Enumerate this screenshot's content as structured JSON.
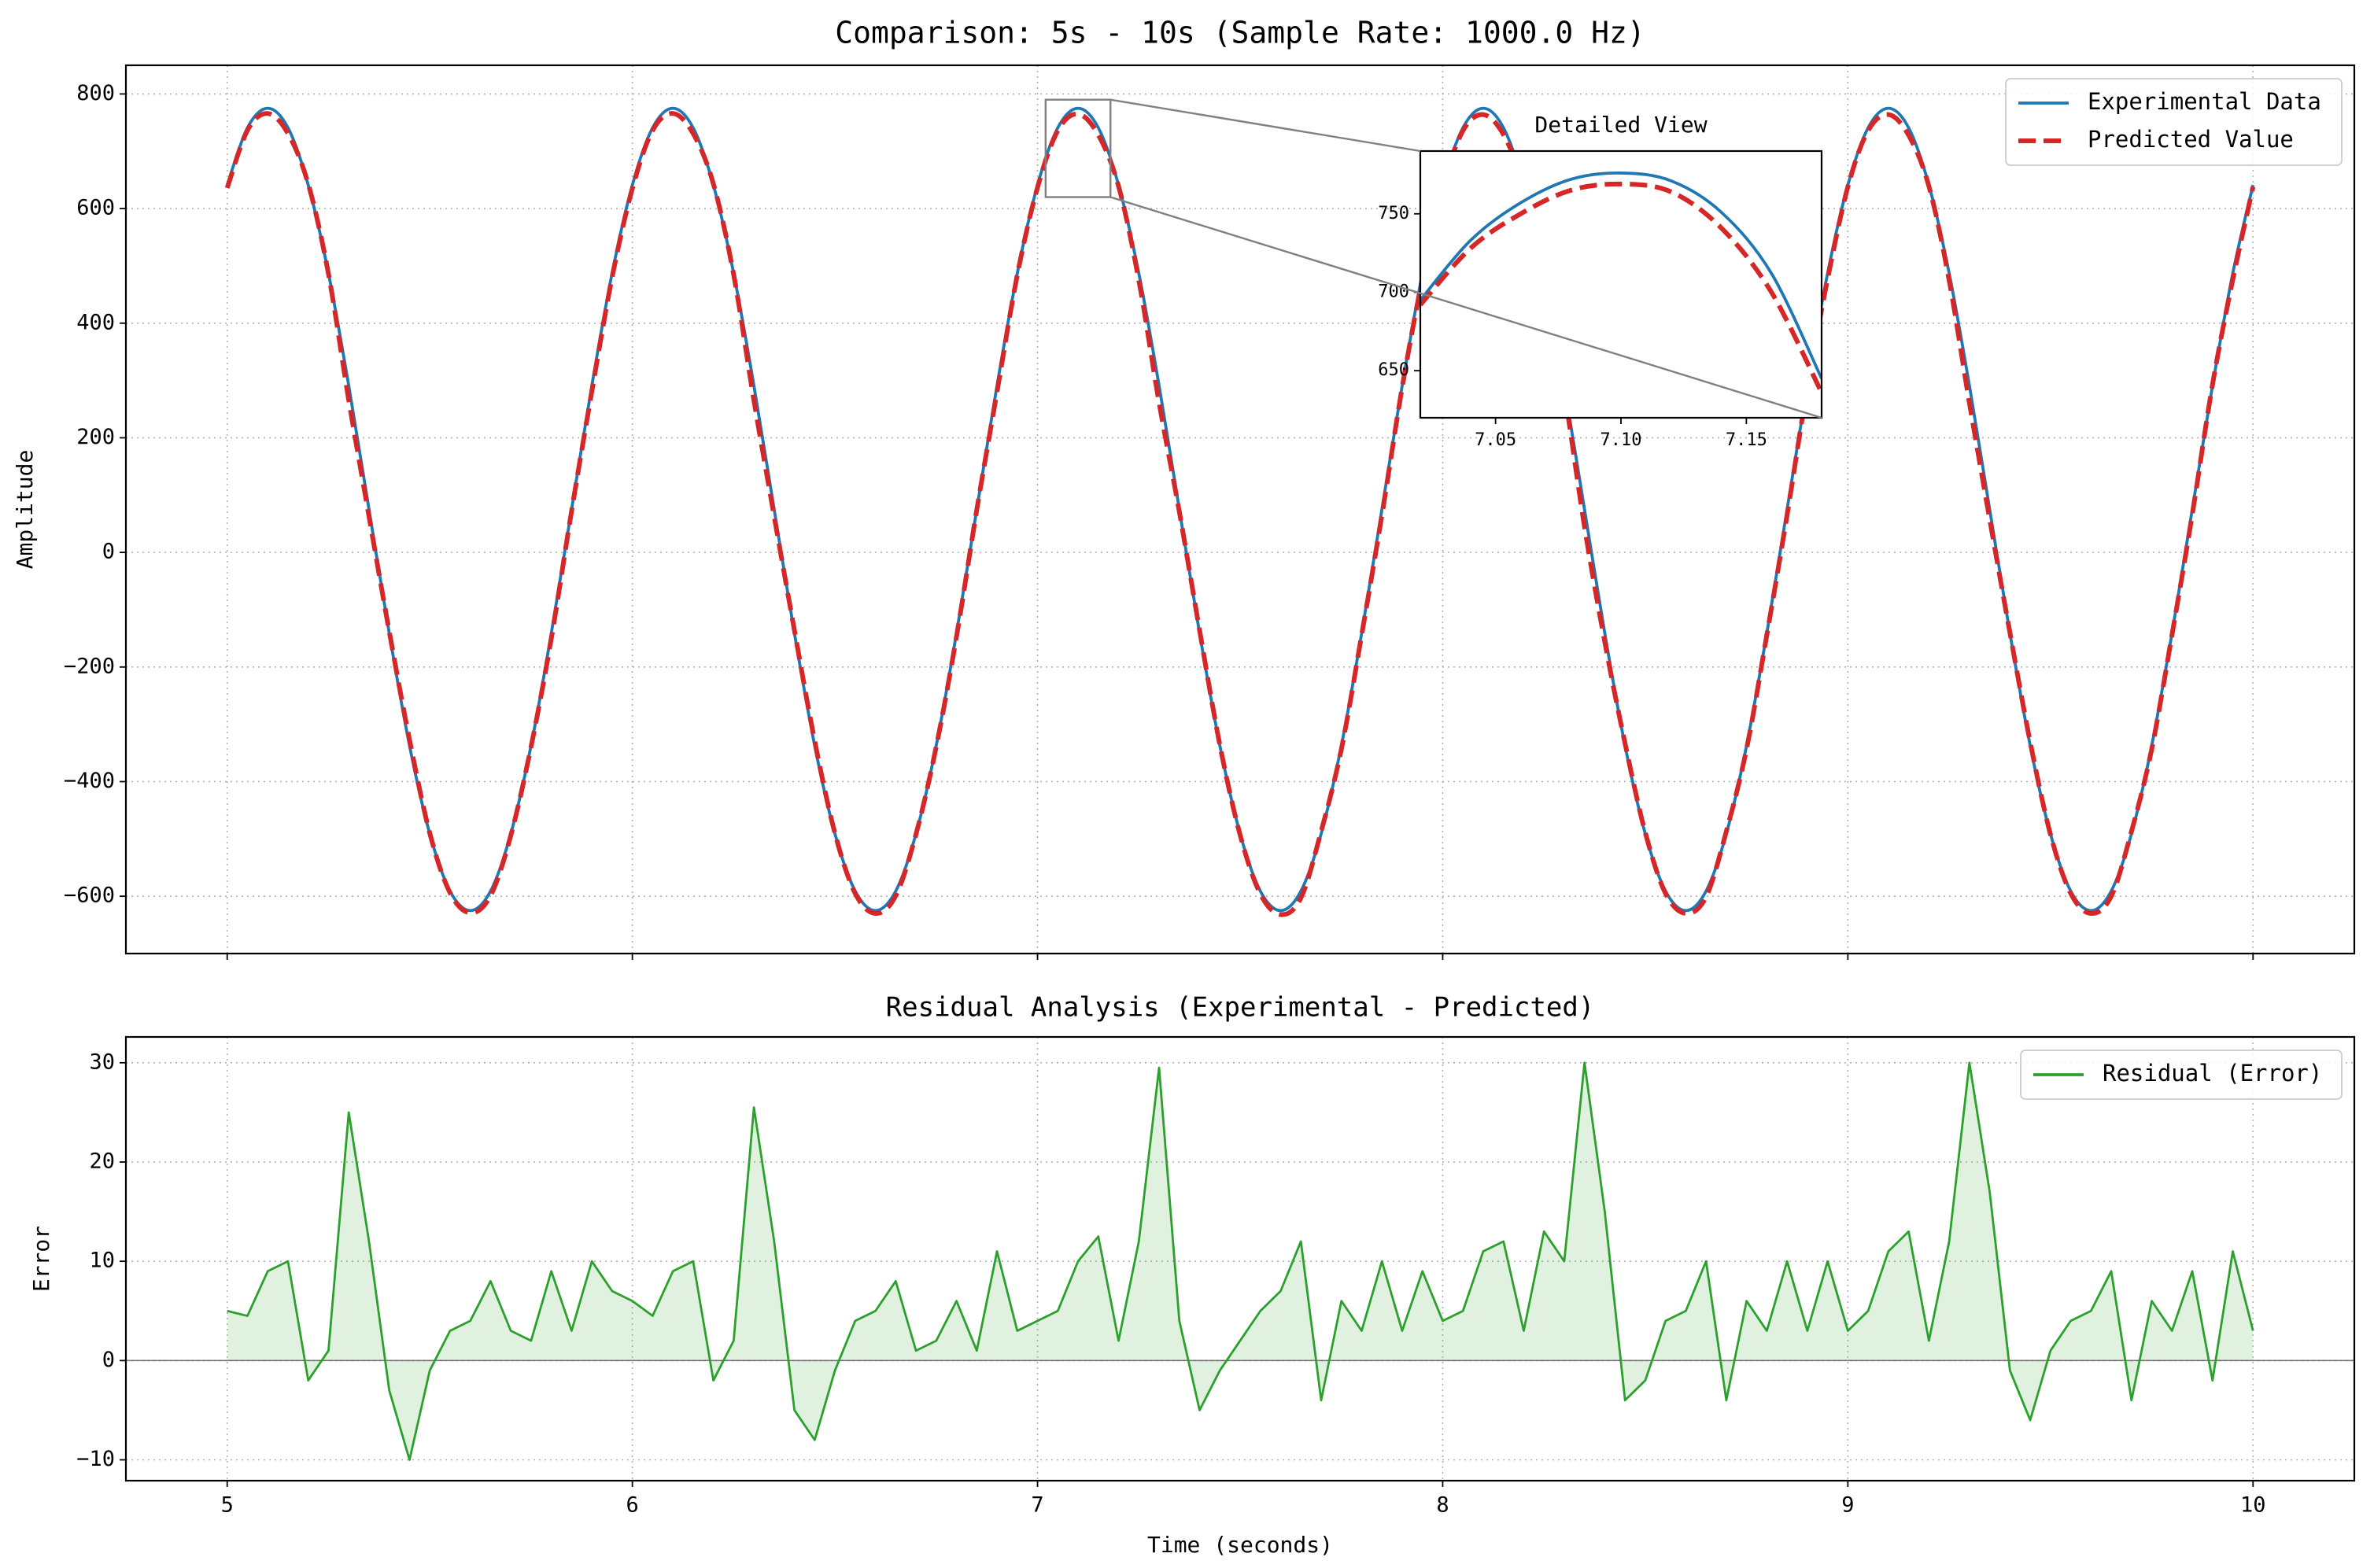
{
  "chart_data": [
    {
      "type": "line",
      "title": "Comparison: 5s - 10s (Sample Rate: 1000.0 Hz)",
      "ylabel": "Amplitude",
      "x": [
        5,
        5.05,
        5.1,
        5.15,
        5.2,
        5.25,
        5.3,
        5.35,
        5.4,
        5.45,
        5.5,
        5.55,
        5.6,
        5.65,
        5.7,
        5.75,
        5.8,
        5.85,
        5.9,
        5.95,
        6,
        6.05,
        6.1,
        6.15,
        6.2,
        6.25,
        6.3,
        6.35,
        6.4,
        6.45,
        6.5,
        6.55,
        6.6,
        6.65,
        6.7,
        6.75,
        6.8,
        6.85,
        6.9,
        6.95,
        7,
        7.05,
        7.1,
        7.15,
        7.2,
        7.25,
        7.3,
        7.35,
        7.4,
        7.45,
        7.5,
        7.55,
        7.6,
        7.65,
        7.7,
        7.75,
        7.8,
        7.85,
        7.9,
        7.95,
        8,
        8.05,
        8.1,
        8.15,
        8.2,
        8.25,
        8.3,
        8.35,
        8.4,
        8.45,
        8.5,
        8.55,
        8.6,
        8.65,
        8.7,
        8.75,
        8.8,
        8.85,
        8.9,
        8.95,
        9,
        9.05,
        9.1,
        9.15,
        9.2,
        9.25,
        9.3,
        9.35,
        9.4,
        9.45,
        9.5,
        9.55,
        9.6,
        9.65,
        9.7,
        9.75,
        9.8,
        9.85,
        9.9,
        9.95,
        10
      ],
      "series": [
        {
          "name": "Experimental Data",
          "color": "#1f77b4",
          "linestyle": "solid",
          "values": [
            641,
            741,
            775,
            741,
            641,
            487,
            291,
            75,
            -141,
            -337,
            -491,
            -591,
            -625,
            -591,
            -491,
            -337,
            -141,
            75,
            291,
            487,
            641,
            741,
            775,
            741,
            641,
            487,
            291,
            75,
            -141,
            -337,
            -491,
            -591,
            -625,
            -591,
            -491,
            -337,
            -141,
            75,
            291,
            487,
            641,
            741,
            775,
            741,
            641,
            487,
            291,
            75,
            -141,
            -337,
            -491,
            -591,
            -625,
            -591,
            -491,
            -337,
            -141,
            75,
            291,
            487,
            641,
            741,
            775,
            741,
            641,
            487,
            291,
            75,
            -141,
            -337,
            -491,
            -591,
            -625,
            -591,
            -491,
            -337,
            -141,
            75,
            291,
            487,
            641,
            741,
            775,
            741,
            641,
            487,
            291,
            75,
            -141,
            -337,
            -491,
            -591,
            -625,
            -591,
            -491,
            -337,
            -141,
            75,
            291,
            487,
            641
          ]
        },
        {
          "name": "Predicted Value",
          "color": "#d62728",
          "linestyle": "dashed",
          "values": [
            636,
            736.5,
            766,
            731,
            643,
            486,
            266,
            63,
            -138,
            -327,
            -490,
            -594,
            -629,
            -599,
            -494,
            -339,
            -150,
            72,
            281,
            480,
            635,
            736.5,
            766,
            731,
            643,
            485,
            265.5,
            63,
            -136,
            -329,
            -490,
            -595,
            -630,
            -599,
            -492,
            -339,
            -147,
            74,
            280,
            484,
            637,
            736,
            765,
            728.5,
            639,
            475,
            261.5,
            71,
            -136,
            -336,
            -493,
            -596,
            -632,
            -603,
            -487,
            -343,
            -144,
            65,
            288,
            478,
            637,
            736,
            764,
            729,
            638,
            474,
            281,
            45,
            -156,
            -333,
            -489,
            -595,
            -630,
            -601,
            -487,
            -343,
            -144,
            65,
            288,
            477,
            638,
            736,
            764,
            728,
            639,
            475,
            261,
            58,
            -140,
            -331,
            -492,
            -595,
            -630,
            -600,
            -487,
            -343,
            -144,
            66,
            293,
            476,
            638
          ]
        }
      ],
      "xlim": [
        4.75,
        10.25
      ],
      "ylim": [
        -700,
        850
      ],
      "xticks": [
        5,
        6,
        7,
        8,
        9,
        10
      ],
      "yticks": [
        {
          "value": -600,
          "label": "−600"
        },
        {
          "value": -400,
          "label": "−400"
        },
        {
          "value": -200,
          "label": "−200"
        },
        0,
        200,
        400,
        600,
        800
      ],
      "grid": true,
      "legend": "upper right"
    },
    {
      "type": "area",
      "title": "Residual Analysis (Experimental - Predicted)",
      "xlabel": "Time (seconds)",
      "ylabel": "Error",
      "x": [
        5,
        5.05,
        5.1,
        5.15,
        5.2,
        5.25,
        5.3,
        5.35,
        5.4,
        5.45,
        5.5,
        5.55,
        5.6,
        5.65,
        5.7,
        5.75,
        5.8,
        5.85,
        5.9,
        5.95,
        6,
        6.05,
        6.1,
        6.15,
        6.2,
        6.25,
        6.3,
        6.35,
        6.4,
        6.45,
        6.5,
        6.55,
        6.6,
        6.65,
        6.7,
        6.75,
        6.8,
        6.85,
        6.9,
        6.95,
        7,
        7.05,
        7.1,
        7.15,
        7.2,
        7.25,
        7.3,
        7.35,
        7.4,
        7.45,
        7.5,
        7.55,
        7.6,
        7.65,
        7.7,
        7.75,
        7.8,
        7.85,
        7.9,
        7.95,
        8,
        8.05,
        8.1,
        8.15,
        8.2,
        8.25,
        8.3,
        8.35,
        8.4,
        8.45,
        8.5,
        8.55,
        8.6,
        8.65,
        8.7,
        8.75,
        8.8,
        8.85,
        8.9,
        8.95,
        9,
        9.05,
        9.1,
        9.15,
        9.2,
        9.25,
        9.3,
        9.35,
        9.4,
        9.45,
        9.5,
        9.55,
        9.6,
        9.65,
        9.7,
        9.75,
        9.8,
        9.85,
        9.9,
        9.95,
        10
      ],
      "series": [
        {
          "name": "Residual (Error)",
          "color": "#2ca02c",
          "values": [
            5,
            4.5,
            9,
            10,
            -2,
            1,
            25,
            12,
            -3,
            -10,
            -1,
            3,
            4,
            8,
            3,
            2,
            9,
            3,
            10,
            7,
            6,
            4.5,
            9,
            10,
            -2,
            2,
            25.5,
            12,
            -5,
            -8,
            -1,
            4,
            5,
            8,
            1,
            2,
            6,
            1,
            11,
            3,
            4,
            5,
            10,
            12.5,
            2,
            12,
            29.5,
            4,
            -5,
            -1,
            2,
            5,
            7,
            12,
            -4,
            6,
            3,
            10,
            3,
            9,
            4,
            5,
            11,
            12,
            3,
            13,
            10,
            30,
            15,
            -4,
            -2,
            4,
            5,
            10,
            -4,
            6,
            3,
            10,
            3,
            10,
            3,
            5,
            11,
            13,
            2,
            12,
            30,
            17,
            -1,
            -6,
            1,
            4,
            5,
            9,
            -4,
            6,
            3,
            9,
            -2,
            11,
            3
          ]
        }
      ],
      "xlim": [
        4.75,
        10.25
      ],
      "ylim": [
        -12.1,
        32.6
      ],
      "xticks": [
        5,
        6,
        7,
        8,
        9,
        10
      ],
      "yticks": [
        {
          "value": -10,
          "label": "−10"
        },
        0,
        10,
        20,
        30
      ],
      "grid": true,
      "legend": "upper right"
    },
    {
      "type": "line",
      "title": "Detailed View",
      "x": [
        7.02,
        7.04,
        7.06,
        7.08,
        7.1,
        7.12,
        7.14,
        7.16,
        7.18
      ],
      "series": [
        {
          "color": "#1f77b4",
          "linestyle": "solid",
          "values": [
            695,
            733,
            757,
            772,
            776,
            771,
            751,
            712,
            645
          ]
        },
        {
          "color": "#d62728",
          "linestyle": "dashed",
          "values": [
            692,
            728,
            750,
            765,
            769,
            764,
            741,
            700,
            636
          ]
        }
      ],
      "xlim": [
        7.02,
        7.18
      ],
      "ylim": [
        620,
        790
      ],
      "xticks": [
        7.05,
        {
          "value": 7.1,
          "label": "7.10"
        },
        7.15
      ],
      "yticks": [
        650,
        700,
        750
      ],
      "grid": false
    }
  ]
}
